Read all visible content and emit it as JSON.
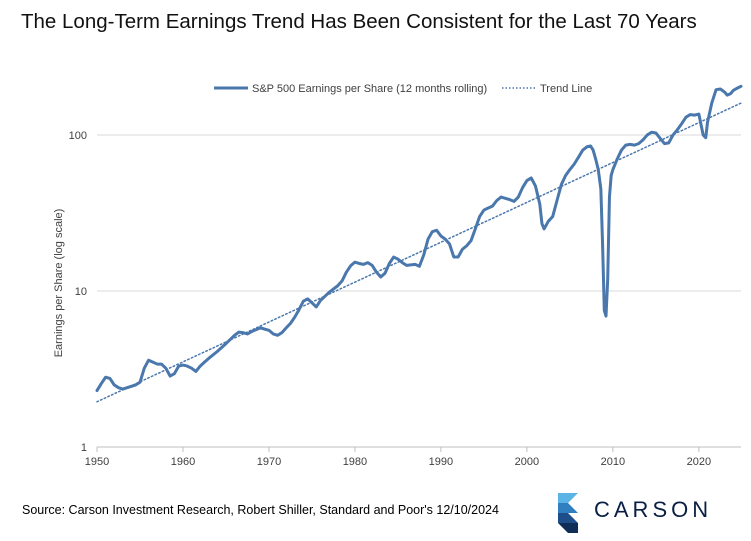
{
  "header": {
    "title": "The Long-Term Earnings Trend Has Been Consistent for the Last 70 Years"
  },
  "footer": {
    "source": "Source: Carson Investment Research, Robert Shiller, Standard and Poor's 12/10/2024",
    "brand": "CARSON"
  },
  "chart_data": {
    "type": "line",
    "title": "The Long-Term Earnings Trend Has Been Consistent for the Last 70 Years",
    "xlabel": "",
    "ylabel": "Earnings per Share (log scale)",
    "yscale": "log",
    "xlim": [
      1950,
      2024.9
    ],
    "ylim": [
      1,
      400
    ],
    "x_ticks": [
      "1950",
      "1960",
      "1970",
      "1980",
      "1990",
      "2000",
      "2010",
      "2020"
    ],
    "y_ticks": [
      "1",
      "10",
      "100"
    ],
    "grid": "horizontal",
    "legend_position": "top-center",
    "colors": {
      "series": "#4a77ac",
      "trend": "#4a77ac",
      "grid": "#d9d9d9",
      "axis": "#bfbfbf"
    },
    "series": [
      {
        "name": "S&P 500 Earnings per Share (12 months rolling)",
        "style": "solid",
        "points": [
          [
            1950.0,
            2.3
          ],
          [
            1950.5,
            2.55
          ],
          [
            1951.0,
            2.8
          ],
          [
            1951.5,
            2.75
          ],
          [
            1952.0,
            2.5
          ],
          [
            1952.5,
            2.4
          ],
          [
            1953.0,
            2.35
          ],
          [
            1953.5,
            2.4
          ],
          [
            1954.0,
            2.45
          ],
          [
            1954.5,
            2.5
          ],
          [
            1955.0,
            2.6
          ],
          [
            1955.5,
            3.2
          ],
          [
            1956.0,
            3.6
          ],
          [
            1956.5,
            3.5
          ],
          [
            1957.0,
            3.4
          ],
          [
            1957.5,
            3.4
          ],
          [
            1958.0,
            3.2
          ],
          [
            1958.5,
            2.85
          ],
          [
            1959.0,
            2.95
          ],
          [
            1959.5,
            3.3
          ],
          [
            1960.0,
            3.35
          ],
          [
            1960.5,
            3.3
          ],
          [
            1961.0,
            3.2
          ],
          [
            1961.5,
            3.05
          ],
          [
            1962.0,
            3.3
          ],
          [
            1962.5,
            3.5
          ],
          [
            1963.0,
            3.7
          ],
          [
            1964.0,
            4.1
          ],
          [
            1965.0,
            4.6
          ],
          [
            1966.0,
            5.2
          ],
          [
            1966.5,
            5.45
          ],
          [
            1967.0,
            5.4
          ],
          [
            1967.5,
            5.3
          ],
          [
            1968.0,
            5.5
          ],
          [
            1969.0,
            5.8
          ],
          [
            1970.0,
            5.6
          ],
          [
            1970.5,
            5.3
          ],
          [
            1971.0,
            5.2
          ],
          [
            1971.5,
            5.4
          ],
          [
            1972.0,
            5.8
          ],
          [
            1972.5,
            6.2
          ],
          [
            1973.0,
            6.8
          ],
          [
            1973.5,
            7.6
          ],
          [
            1974.0,
            8.6
          ],
          [
            1974.5,
            8.9
          ],
          [
            1975.0,
            8.4
          ],
          [
            1975.5,
            7.9
          ],
          [
            1976.0,
            8.7
          ],
          [
            1977.0,
            9.8
          ],
          [
            1978.0,
            10.8
          ],
          [
            1978.5,
            11.6
          ],
          [
            1979.0,
            13.2
          ],
          [
            1979.5,
            14.5
          ],
          [
            1980.0,
            15.3
          ],
          [
            1980.5,
            15.0
          ],
          [
            1981.0,
            14.8
          ],
          [
            1981.5,
            15.2
          ],
          [
            1982.0,
            14.6
          ],
          [
            1982.5,
            13.2
          ],
          [
            1983.0,
            12.3
          ],
          [
            1983.5,
            13.0
          ],
          [
            1984.0,
            15.0
          ],
          [
            1984.5,
            16.5
          ],
          [
            1985.0,
            16.0
          ],
          [
            1985.5,
            15.2
          ],
          [
            1986.0,
            14.6
          ],
          [
            1987.0,
            14.8
          ],
          [
            1987.5,
            14.4
          ],
          [
            1988.0,
            17.0
          ],
          [
            1988.5,
            21.5
          ],
          [
            1989.0,
            24.0
          ],
          [
            1989.5,
            24.5
          ],
          [
            1990.0,
            22.5
          ],
          [
            1990.5,
            21.5
          ],
          [
            1991.0,
            20.0
          ],
          [
            1991.5,
            16.5
          ],
          [
            1992.0,
            16.5
          ],
          [
            1992.5,
            18.5
          ],
          [
            1993.0,
            19.5
          ],
          [
            1993.5,
            21.0
          ],
          [
            1994.0,
            25.0
          ],
          [
            1994.5,
            30.0
          ],
          [
            1995.0,
            33.0
          ],
          [
            1995.5,
            34.0
          ],
          [
            1996.0,
            35.0
          ],
          [
            1996.5,
            38.0
          ],
          [
            1997.0,
            40.0
          ],
          [
            1998.0,
            38.5
          ],
          [
            1998.5,
            37.5
          ],
          [
            1999.0,
            40.0
          ],
          [
            1999.5,
            46.0
          ],
          [
            2000.0,
            51.0
          ],
          [
            2000.5,
            53.0
          ],
          [
            2001.0,
            47.0
          ],
          [
            2001.5,
            36.0
          ],
          [
            2001.75,
            27.0
          ],
          [
            2002.0,
            25.0
          ],
          [
            2002.5,
            28.0
          ],
          [
            2003.0,
            30.0
          ],
          [
            2003.5,
            38.0
          ],
          [
            2004.0,
            48.0
          ],
          [
            2004.5,
            55.0
          ],
          [
            2005.0,
            60.0
          ],
          [
            2005.5,
            65.0
          ],
          [
            2006.0,
            72.0
          ],
          [
            2006.5,
            80.0
          ],
          [
            2007.0,
            84.0
          ],
          [
            2007.4,
            85.0
          ],
          [
            2007.7,
            80.0
          ],
          [
            2008.0,
            70.0
          ],
          [
            2008.3,
            60.0
          ],
          [
            2008.6,
            45.0
          ],
          [
            2008.8,
            20.0
          ],
          [
            2009.0,
            7.5
          ],
          [
            2009.2,
            6.9
          ],
          [
            2009.4,
            12.0
          ],
          [
            2009.6,
            40.0
          ],
          [
            2009.8,
            55.0
          ],
          [
            2010.0,
            60.0
          ],
          [
            2010.5,
            70.0
          ],
          [
            2011.0,
            80.0
          ],
          [
            2011.5,
            86.0
          ],
          [
            2012.0,
            87.0
          ],
          [
            2012.5,
            86.0
          ],
          [
            2013.0,
            88.0
          ],
          [
            2013.5,
            93.0
          ],
          [
            2014.0,
            100.0
          ],
          [
            2014.5,
            104.0
          ],
          [
            2015.0,
            103.0
          ],
          [
            2015.5,
            95.0
          ],
          [
            2016.0,
            88.0
          ],
          [
            2016.5,
            89.0
          ],
          [
            2017.0,
            100.0
          ],
          [
            2017.5,
            108.0
          ],
          [
            2018.0,
            118.0
          ],
          [
            2018.5,
            130.0
          ],
          [
            2019.0,
            135.0
          ],
          [
            2019.5,
            134.0
          ],
          [
            2020.0,
            136.0
          ],
          [
            2020.2,
            120.0
          ],
          [
            2020.5,
            100.0
          ],
          [
            2020.8,
            96.0
          ],
          [
            2021.0,
            120.0
          ],
          [
            2021.5,
            160.0
          ],
          [
            2022.0,
            195.0
          ],
          [
            2022.5,
            197.0
          ],
          [
            2023.0,
            188.0
          ],
          [
            2023.3,
            180.0
          ],
          [
            2023.7,
            184.0
          ],
          [
            2024.0,
            193.0
          ],
          [
            2024.5,
            200.0
          ],
          [
            2024.9,
            205.0
          ]
        ]
      },
      {
        "name": "Trend Line",
        "style": "dotted",
        "points": [
          [
            1950.0,
            1.95
          ],
          [
            2024.9,
            160.0
          ]
        ]
      }
    ]
  }
}
